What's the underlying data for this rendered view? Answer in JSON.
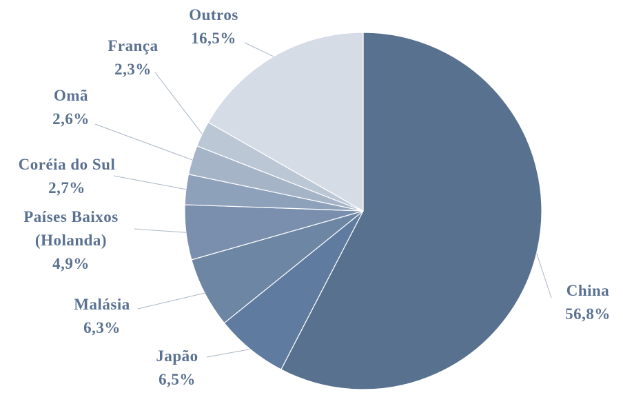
{
  "chart_data": {
    "type": "pie",
    "categories": [
      "China",
      "Japão",
      "Malásia",
      "Países Baixos (Holanda)",
      "Coréia do Sul",
      "Omã",
      "França",
      "Outros"
    ],
    "values": [
      56.8,
      6.5,
      6.3,
      4.9,
      2.7,
      2.6,
      2.3,
      16.5
    ],
    "value_labels": [
      "56,8%",
      "6,5%",
      "6,3%",
      "4,9%",
      "2,7%",
      "2,6%",
      "2,3%",
      "16,5%"
    ],
    "colors": [
      "#58718f",
      "#5f7b9f",
      "#6c86a3",
      "#7a8fad",
      "#8ea1bb",
      "#a6b4c8",
      "#bcc7d6",
      "#d5dce6"
    ]
  }
}
